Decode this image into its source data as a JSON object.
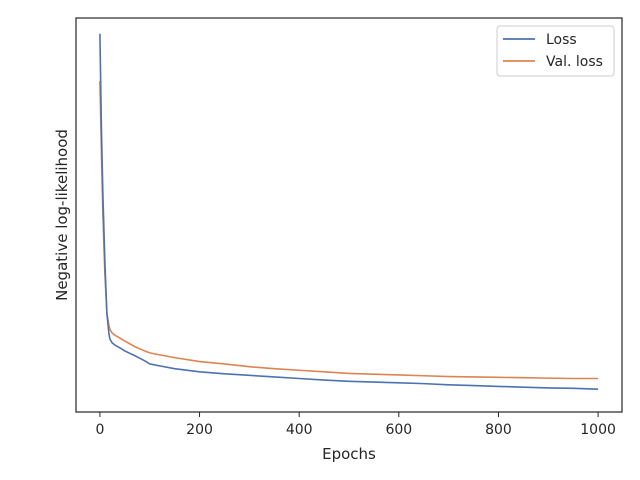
{
  "chart_data": {
    "type": "line",
    "xlabel": "Epochs",
    "ylabel": "Negative log-likelihood",
    "xlim": [
      -48,
      1048
    ],
    "ylim": [
      0,
      1
    ],
    "x_ticks": [
      0,
      200,
      400,
      600,
      800,
      1000
    ],
    "y_ticks_shown": false,
    "grid": false,
    "legend": "top-right",
    "series": [
      {
        "name": "Loss",
        "color": "#4c72b0",
        "points": [
          [
            0,
            0.96
          ],
          [
            3,
            0.72
          ],
          [
            6,
            0.55
          ],
          [
            10,
            0.38
          ],
          [
            14,
            0.25
          ],
          [
            18,
            0.2
          ],
          [
            20,
            0.185
          ],
          [
            25,
            0.175
          ],
          [
            30,
            0.17
          ],
          [
            40,
            0.163
          ],
          [
            50,
            0.155
          ],
          [
            70,
            0.143
          ],
          [
            90,
            0.13
          ],
          [
            100,
            0.122
          ],
          [
            120,
            0.117
          ],
          [
            150,
            0.11
          ],
          [
            200,
            0.102
          ],
          [
            250,
            0.097
          ],
          [
            300,
            0.093
          ],
          [
            350,
            0.089
          ],
          [
            400,
            0.085
          ],
          [
            450,
            0.081
          ],
          [
            500,
            0.078
          ],
          [
            550,
            0.076
          ],
          [
            600,
            0.074
          ],
          [
            650,
            0.072
          ],
          [
            700,
            0.069
          ],
          [
            750,
            0.067
          ],
          [
            800,
            0.065
          ],
          [
            850,
            0.063
          ],
          [
            900,
            0.061
          ],
          [
            950,
            0.06
          ],
          [
            1000,
            0.058
          ]
        ]
      },
      {
        "name": "Val. loss",
        "color": "#dd8452",
        "points": [
          [
            0,
            0.84
          ],
          [
            3,
            0.66
          ],
          [
            6,
            0.5
          ],
          [
            10,
            0.35
          ],
          [
            14,
            0.25
          ],
          [
            18,
            0.22
          ],
          [
            20,
            0.21
          ],
          [
            25,
            0.2
          ],
          [
            30,
            0.195
          ],
          [
            40,
            0.188
          ],
          [
            50,
            0.18
          ],
          [
            70,
            0.166
          ],
          [
            90,
            0.155
          ],
          [
            100,
            0.15
          ],
          [
            120,
            0.145
          ],
          [
            150,
            0.138
          ],
          [
            200,
            0.128
          ],
          [
            250,
            0.122
          ],
          [
            300,
            0.115
          ],
          [
            350,
            0.11
          ],
          [
            400,
            0.106
          ],
          [
            450,
            0.102
          ],
          [
            500,
            0.098
          ],
          [
            550,
            0.096
          ],
          [
            600,
            0.094
          ],
          [
            650,
            0.092
          ],
          [
            700,
            0.09
          ],
          [
            750,
            0.089
          ],
          [
            800,
            0.088
          ],
          [
            850,
            0.087
          ],
          [
            900,
            0.086
          ],
          [
            950,
            0.085
          ],
          [
            1000,
            0.085
          ]
        ]
      }
    ]
  }
}
